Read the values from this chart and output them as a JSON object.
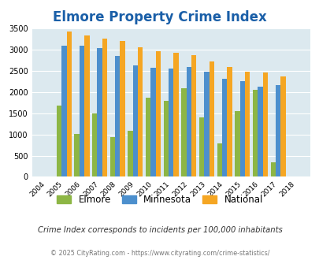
{
  "title": "Elmore Property Crime Index",
  "years": [
    2004,
    2005,
    2006,
    2007,
    2008,
    2009,
    2010,
    2011,
    2012,
    2013,
    2014,
    2015,
    2016,
    2017,
    2018
  ],
  "elmore": [
    0,
    1680,
    1010,
    1500,
    940,
    1090,
    1870,
    1800,
    2090,
    1400,
    790,
    1560,
    2060,
    340,
    0
  ],
  "minnesota": [
    0,
    3090,
    3090,
    3040,
    2860,
    2640,
    2580,
    2560,
    2590,
    2480,
    2310,
    2250,
    2130,
    2170,
    0
  ],
  "national": [
    0,
    3430,
    3340,
    3270,
    3210,
    3060,
    2960,
    2920,
    2880,
    2720,
    2600,
    2490,
    2470,
    2370,
    0
  ],
  "elmore_color": "#8db645",
  "minnesota_color": "#4c8fcd",
  "national_color": "#f5a623",
  "bg_color": "#dce9ef",
  "title_color": "#1a5fa8",
  "subtitle": "Crime Index corresponds to incidents per 100,000 inhabitants",
  "footer": "© 2025 CityRating.com - https://www.cityrating.com/crime-statistics/",
  "ylim": [
    0,
    3500
  ],
  "yticks": [
    0,
    500,
    1000,
    1500,
    2000,
    2500,
    3000,
    3500
  ]
}
